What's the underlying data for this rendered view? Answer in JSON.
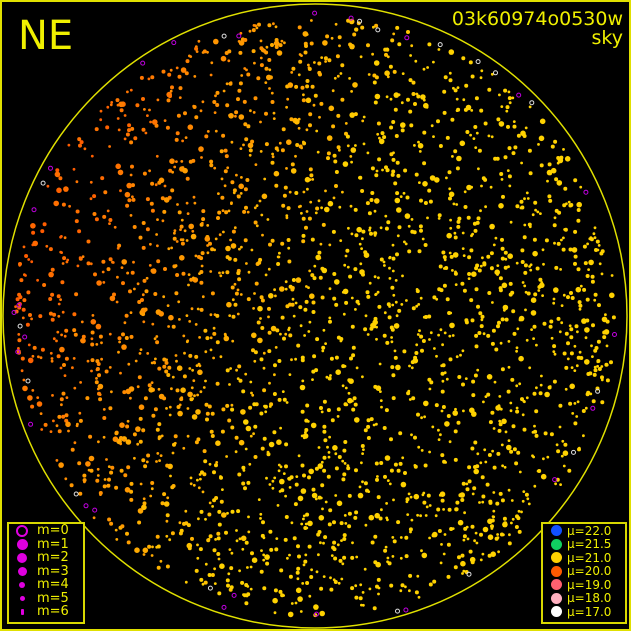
{
  "direction_label": "NE",
  "image_id": "03k60974o0530w",
  "image_type": "sky",
  "magnitude_legend": [
    {
      "label": "m=0",
      "size": 0
    },
    {
      "label": "m=1",
      "size": 1
    },
    {
      "label": "m=2",
      "size": 2
    },
    {
      "label": "m=3",
      "size": 3
    },
    {
      "label": "m=4",
      "size": 4
    },
    {
      "label": "m=5",
      "size": 5
    },
    {
      "label": "m=6",
      "size": 6
    }
  ],
  "magnitude_color": "#e000e0",
  "brightness_legend": [
    {
      "label": "μ=22.0",
      "color": "#1050ff"
    },
    {
      "label": "μ=21.5",
      "color": "#10d060"
    },
    {
      "label": "μ=21.0",
      "color": "#ffd000"
    },
    {
      "label": "μ=20.0",
      "color": "#ff5a00"
    },
    {
      "label": "μ=19.0",
      "color": "#ff6070"
    },
    {
      "label": "μ=18.0",
      "color": "#ffb0c0"
    },
    {
      "label": "μ=17.0",
      "color": "#ffffff"
    }
  ],
  "colors": {
    "frame": "#e0e000",
    "horizon": "#e0e000",
    "background": "#000000"
  }
}
